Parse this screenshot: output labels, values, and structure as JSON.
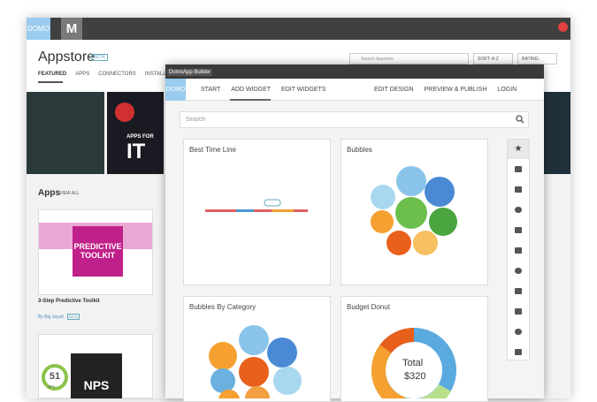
{
  "appstore": {
    "logo": "DOMO",
    "logo2": "M",
    "title": "Appstore",
    "badge": "BETA",
    "tabs": [
      "FEATURED",
      "APPS",
      "CONNECTORS",
      "INSTALLED"
    ],
    "search_placeholder": "Search Appstore",
    "sort": "SORT: A-Z",
    "rating": "RATING:",
    "banner": {
      "line1": "APPS FOR",
      "line2": "IT"
    },
    "apps_heading": "Apps",
    "view_all": "VIEW ALL",
    "card1": {
      "image_line1": "PREDICTIVE",
      "image_line2": "TOOLKIT",
      "title": "3-Step Predictive Toolkit",
      "author": "By Big Squid",
      "badge": "BETA"
    },
    "card2": {
      "score": "51",
      "label": "NPS",
      "image_label": "NPS"
    }
  },
  "builder": {
    "window_title": "DomoApp Builder",
    "logo": "DOMO",
    "nav_left": [
      "START",
      "ADD WIDGET",
      "EDIT WIDGETS"
    ],
    "nav_right": [
      "EDIT DESIGN",
      "PREVIEW & PUBLISH",
      "LOGIN"
    ],
    "search_placeholder": "Search",
    "widgets": [
      "Best Time Line",
      "Bubbles",
      "Bubbles By Category",
      "Budget Donut"
    ],
    "donut": {
      "label": "Total",
      "value": "$320"
    }
  }
}
